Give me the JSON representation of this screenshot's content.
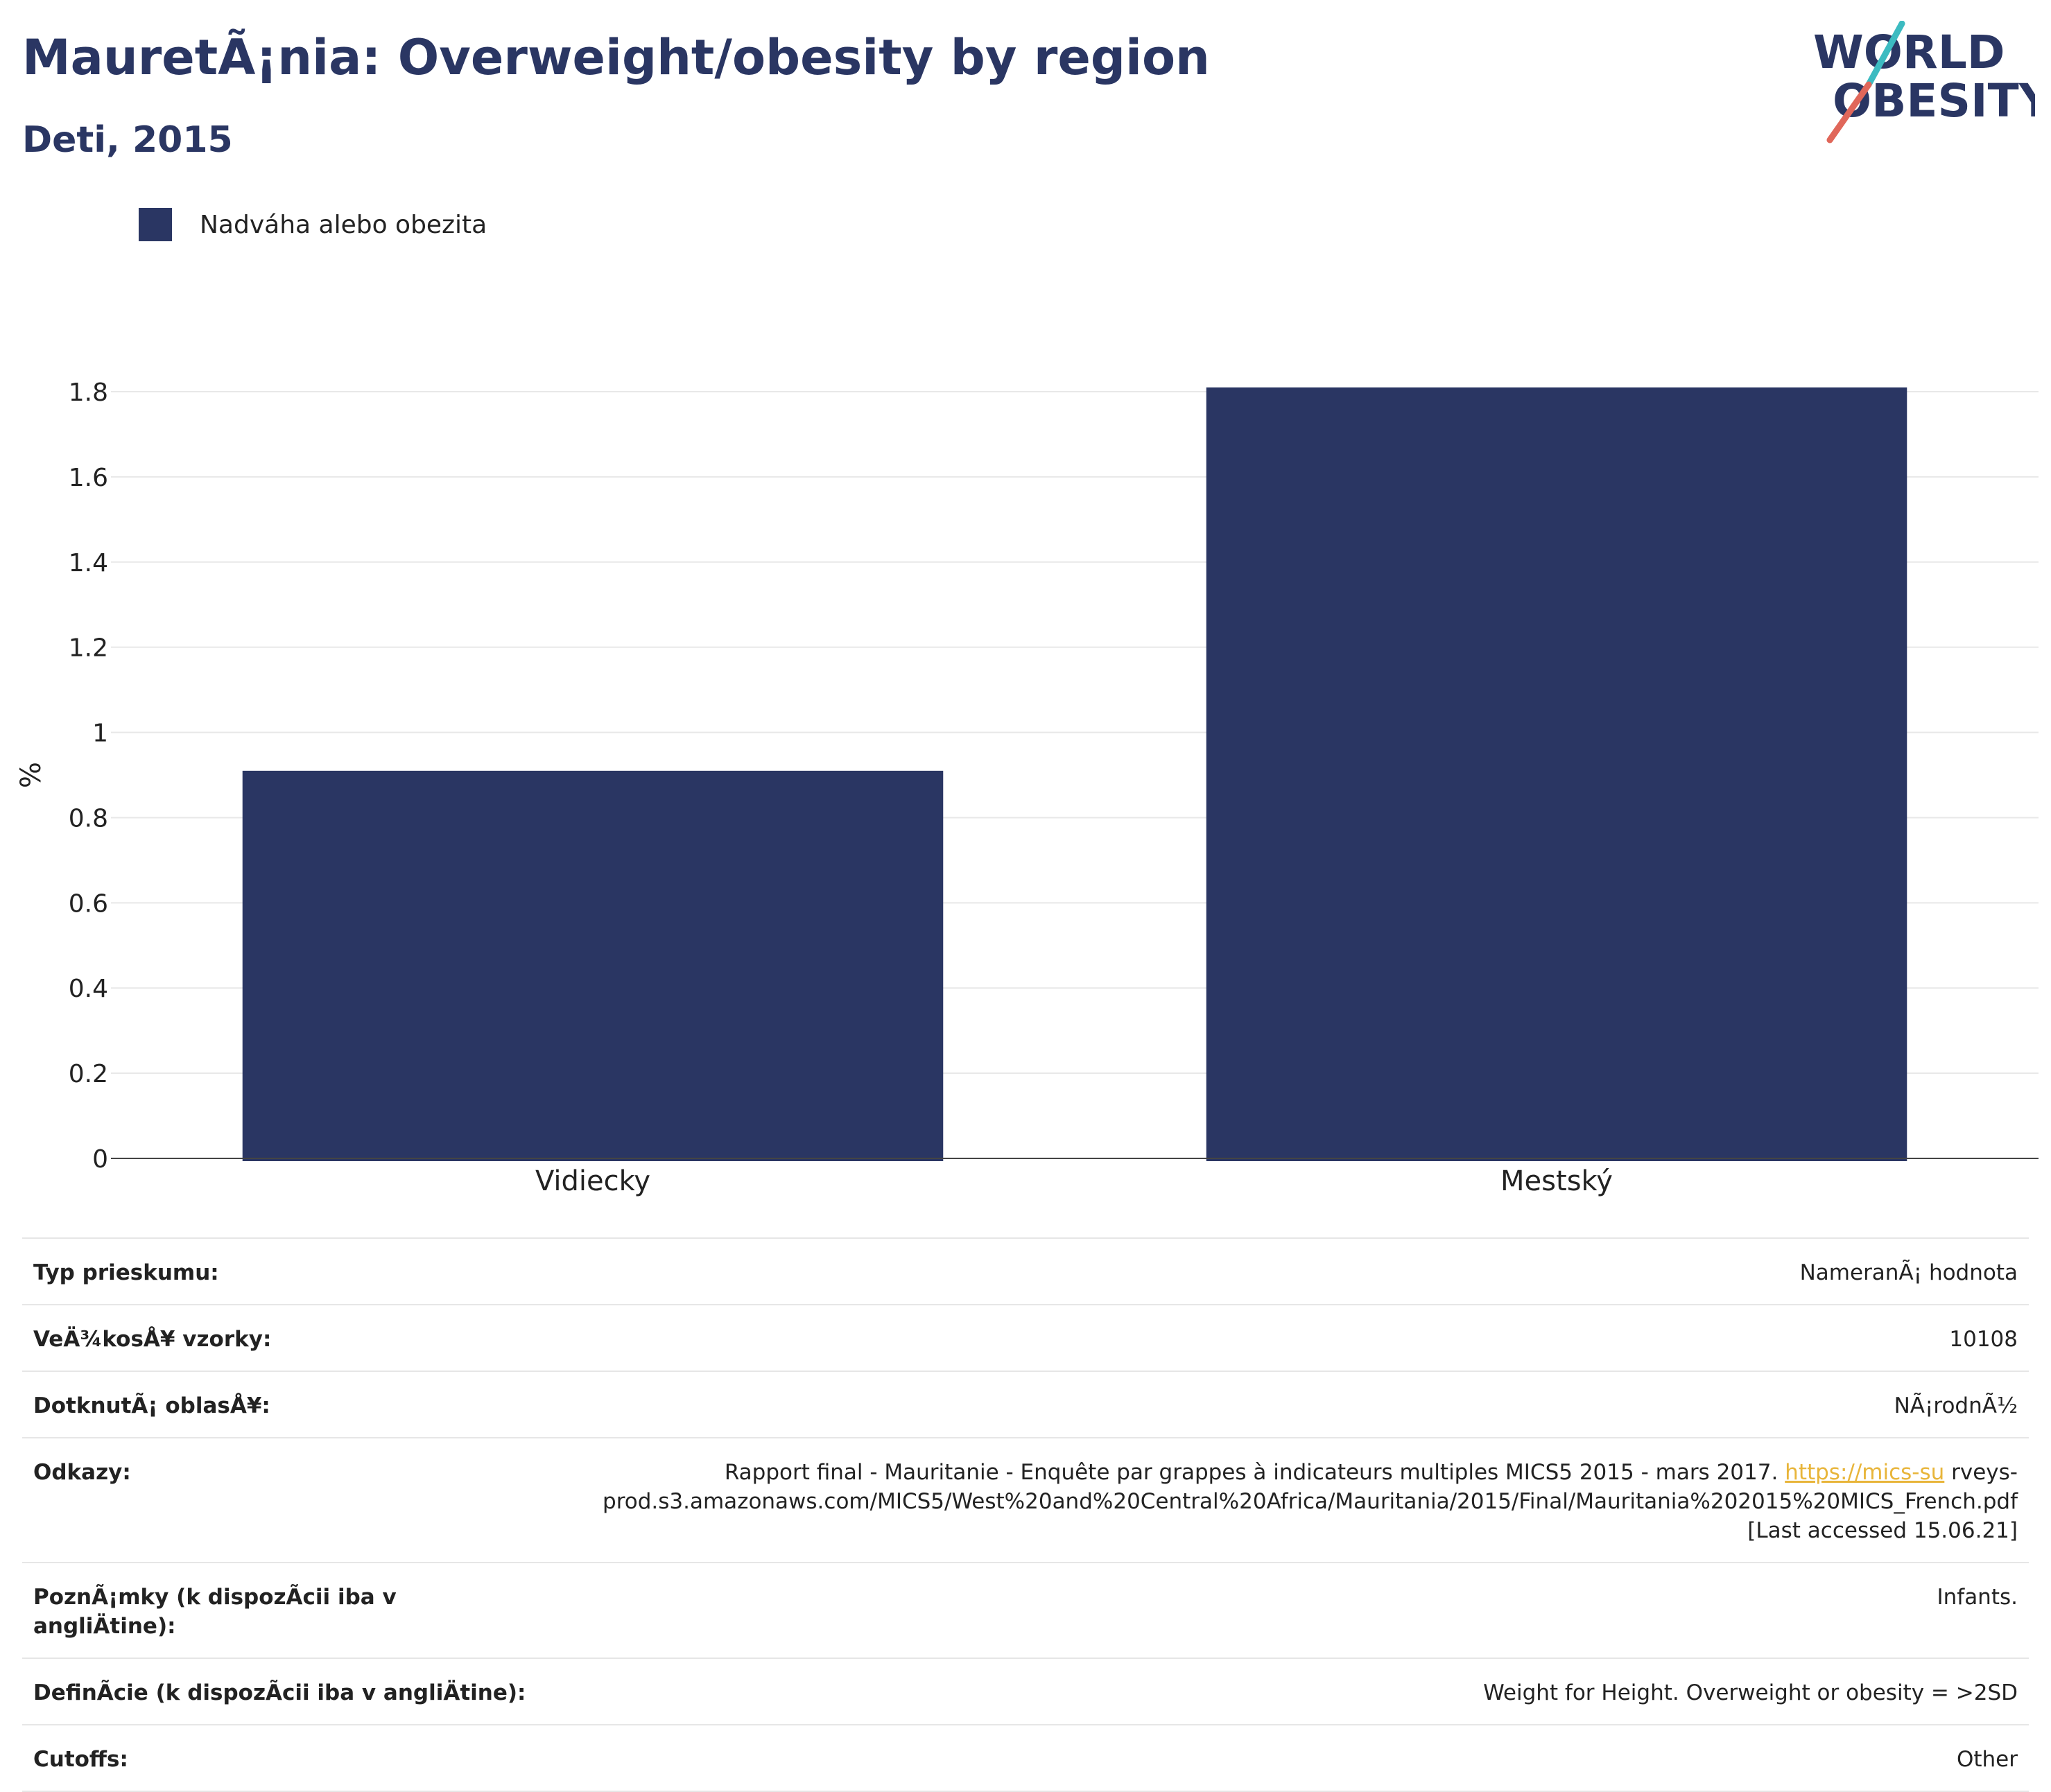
{
  "header": {
    "title": "MauretÃ¡nia: Overweight/obesity by region",
    "subtitle": "Deti, 2015",
    "logo_text": "WORLD OBESITY"
  },
  "colors": {
    "bar": "#2a3663",
    "title": "#2a3663",
    "logo_teal": "#3cbbc1",
    "logo_red": "#e0675a",
    "link": "#e8b53a"
  },
  "legend": {
    "label": "Nadváha alebo obezita"
  },
  "chart_data": {
    "type": "bar",
    "categories": [
      "Vidiecky",
      "Mestský"
    ],
    "series": [
      {
        "name": "Nadváha alebo obezita",
        "values": [
          0.91,
          1.81
        ]
      }
    ],
    "ylabel": "%",
    "ylim": [
      0,
      1.8
    ],
    "yticks": [
      "0",
      "0.2",
      "0.4",
      "0.6",
      "0.8",
      "1",
      "1.2",
      "1.4",
      "1.6",
      "1.8"
    ],
    "grid": true,
    "legend_position": "top-left"
  },
  "info": {
    "survey_type": {
      "label": "Typ prieskumu:",
      "value": "NameranÃ¡ hodnota"
    },
    "sample_size": {
      "label": "VeÄ¾kosÅ¥ vzorky:",
      "value": "10108"
    },
    "area": {
      "label": "DotknutÃ¡ oblasÅ¥:",
      "value": "NÃ¡rodnÃ½"
    },
    "references": {
      "label": "Odkazy:",
      "text": "Rapport final - Mauritanie - Enquête par grappes à indicateurs multiples MICS5 2015 - mars 2017.",
      "link": "https://mics-su",
      "rest": "rveys-prod.s3.amazonaws.com/MICS5/West%20and%20Central%20Africa/Mauritania/2015/Final/Mauritania%202015%20MICS_French.pdf",
      "accessed": "[Last accessed 15.06.21]"
    },
    "notes": {
      "label": "PoznÃ¡mky (k dispozÃcii iba v angliÄtine):",
      "value": "Infants."
    },
    "definition": {
      "label": "DefinÃcie (k dispozÃcii iba v angliÄtine):",
      "value": "Weight for Height. Overweight or obesity = >2SD"
    },
    "cutoffs": {
      "label": "Cutoffs:",
      "value": "Other"
    }
  }
}
